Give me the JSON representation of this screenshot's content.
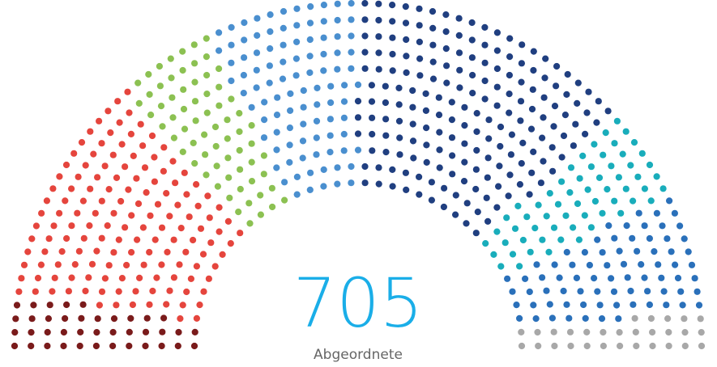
{
  "chart_data": {
    "type": "parliament",
    "total": 705,
    "total_label": "Abgeordnete",
    "values": [
      39,
      148,
      67,
      98,
      187,
      61,
      76,
      29
    ],
    "colors": [
      "#7a1b1b",
      "#e5453d",
      "#8cc152",
      "#4a8fcf",
      "#203f80",
      "#19adbb",
      "#2a70ba",
      "#a8a8a8"
    ]
  }
}
